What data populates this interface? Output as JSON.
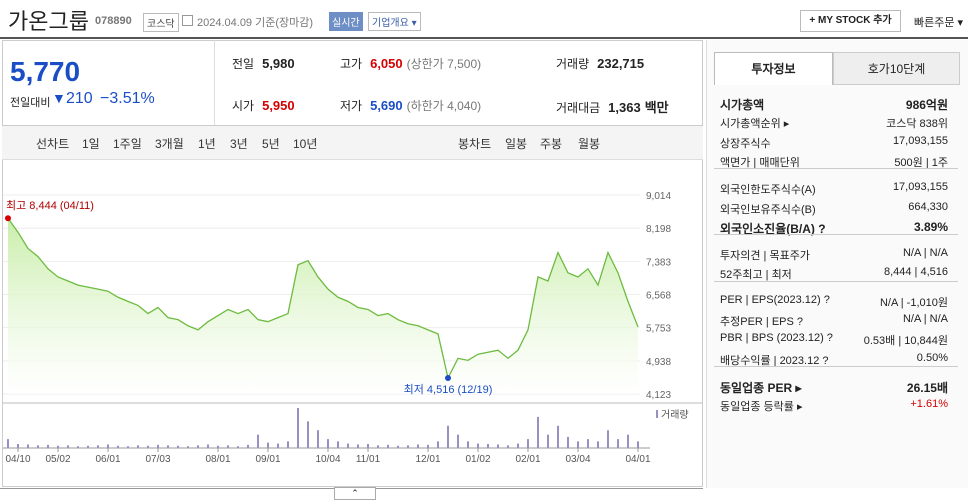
{
  "header": {
    "name": "가온그룹",
    "code": "078890",
    "market": "코스닥",
    "date": "2024.04.09 기준(장마감)",
    "realtime": "실시간",
    "overview": "기업개요",
    "mystock": "+ MY STOCK 추가",
    "quick_order": "빠른주문"
  },
  "price": {
    "current": "5,770",
    "change_label": "전일대비",
    "change": "210",
    "change_rate": "−3.51%"
  },
  "stats": [
    {
      "label": "전일",
      "value": "5,980"
    },
    {
      "label": "고가",
      "value": "6,050",
      "extra": "(상한가 7,500)"
    },
    {
      "label": "거래량",
      "value": "232,715"
    },
    {
      "label": "시가",
      "value": "5,950"
    },
    {
      "label": "저가",
      "value": "5,690",
      "extra": "(하한가 4,040)"
    },
    {
      "label": "거래대금",
      "value": "1,363",
      "extra": "백만"
    }
  ],
  "tabs": {
    "line": "선차트",
    "periods": [
      "1일",
      "1주일",
      "3개월",
      "1년",
      "3년",
      "5년",
      "10년"
    ],
    "candle": "봉차트",
    "candles": [
      "일봉",
      "주봉",
      "월봉"
    ]
  },
  "chart_data": {
    "type": "area",
    "color": "#6dbb3f",
    "fill": "#c9eeaa",
    "grid": true,
    "categories": [
      null,
      "04/10",
      null,
      null,
      null,
      "05/02",
      null,
      null,
      null,
      null,
      "06/01",
      null,
      null,
      null,
      null,
      "07/03",
      null,
      null,
      null,
      null,
      null,
      "08/01",
      null,
      null,
      null,
      null,
      "09/01",
      null,
      null,
      null,
      null,
      null,
      "10/04",
      null,
      null,
      null,
      "11/01",
      null,
      null,
      null,
      null,
      null,
      "12/01",
      null,
      null,
      null,
      null,
      "01/02",
      null,
      null,
      null,
      null,
      "02/01",
      null,
      null,
      null,
      null,
      "03/04",
      null,
      null,
      null,
      null,
      null,
      "04/01"
    ],
    "values": [
      8444,
      8100,
      7700,
      7500,
      7200,
      7000,
      6900,
      6800,
      6750,
      6700,
      6650,
      6500,
      6400,
      6300,
      6100,
      6250,
      6000,
      5950,
      5800,
      5700,
      5900,
      6050,
      6200,
      6100,
      6200,
      5950,
      5900,
      6000,
      6100,
      7300,
      7400,
      7000,
      6700,
      6500,
      6400,
      6250,
      6200,
      6050,
      6100,
      5950,
      5850,
      5800,
      5700,
      5600,
      4516,
      5000,
      4950,
      5100,
      5150,
      5200,
      5000,
      5200,
      5700,
      7000,
      6900,
      7600,
      7100,
      7000,
      7200,
      6800,
      7600,
      7100,
      6400,
      5770
    ],
    "ylim": [
      4123,
      9014
    ],
    "yticks": [
      {
        "value": 4123,
        "label": "4,123"
      },
      {
        "value": 4938,
        "label": "4,938"
      },
      {
        "value": 5753,
        "label": "5,753"
      },
      {
        "value": 6568,
        "label": "6,568"
      },
      {
        "value": 7383,
        "label": "7,383"
      },
      {
        "value": 8198,
        "label": "8,198"
      },
      {
        "value": 9014,
        "label": "9,014"
      }
    ],
    "high_label": "최고 8,444 (04/11)",
    "low_label": "최저 4,516 (12/19)",
    "volume_label": "거래량",
    "volume_color": "#9a8fc4",
    "volume": [
      200000,
      90000,
      80000,
      60000,
      70000,
      50000,
      60000,
      40000,
      50000,
      60000,
      80000,
      50000,
      40000,
      60000,
      50000,
      70000,
      60000,
      50000,
      40000,
      60000,
      80000,
      50000,
      60000,
      40000,
      70000,
      300000,
      120000,
      100000,
      150000,
      900000,
      600000,
      400000,
      200000,
      150000,
      100000,
      80000,
      90000,
      60000,
      70000,
      50000,
      60000,
      80000,
      70000,
      150000,
      500000,
      300000,
      150000,
      100000,
      90000,
      80000,
      60000,
      100000,
      200000,
      700000,
      300000,
      500000,
      250000,
      150000,
      200000,
      150000,
      400000,
      200000,
      300000,
      150000
    ]
  },
  "info": {
    "tabs": [
      "투자정보",
      "호가10단계"
    ],
    "groups": [
      [
        {
          "label": "시가총액",
          "value": "986억원",
          "bold": true
        },
        {
          "label": "시가총액순위 ▸",
          "value": "코스닥 838위"
        },
        {
          "label": "상장주식수",
          "value": "17,093,155"
        },
        {
          "label": "액면가 | 매매단위",
          "value": "500원 | 1주"
        }
      ],
      [
        {
          "label": "외국인한도주식수(A)",
          "value": "17,093,155"
        },
        {
          "label": "외국인보유주식수(B)",
          "value": "664,330"
        },
        {
          "label": "외국인소진율(B/A) ?",
          "value": "3.89%",
          "bold": true
        }
      ],
      [
        {
          "label": "투자의견 | 목표주가",
          "value": "N/A | N/A"
        },
        {
          "label": "52주최고 | 최저",
          "value": "8,444 | 4,516"
        }
      ],
      [
        {
          "label": "PER | EPS(2023.12) ?",
          "value": "N/A | -1,010원"
        },
        {
          "label": "추정PER | EPS ?",
          "value": "N/A | N/A"
        },
        {
          "label": "PBR | BPS (2023.12) ?",
          "value": "0.53배 | 10,844원"
        },
        {
          "label": "배당수익률 | 2023.12 ?",
          "value": "0.50%"
        }
      ],
      [
        {
          "label": "동일업종 PER ▸",
          "value": "26.15배",
          "bold": true
        },
        {
          "label": "동일업종 등락률 ▸",
          "value": "+1.61%",
          "red": true
        }
      ]
    ]
  }
}
